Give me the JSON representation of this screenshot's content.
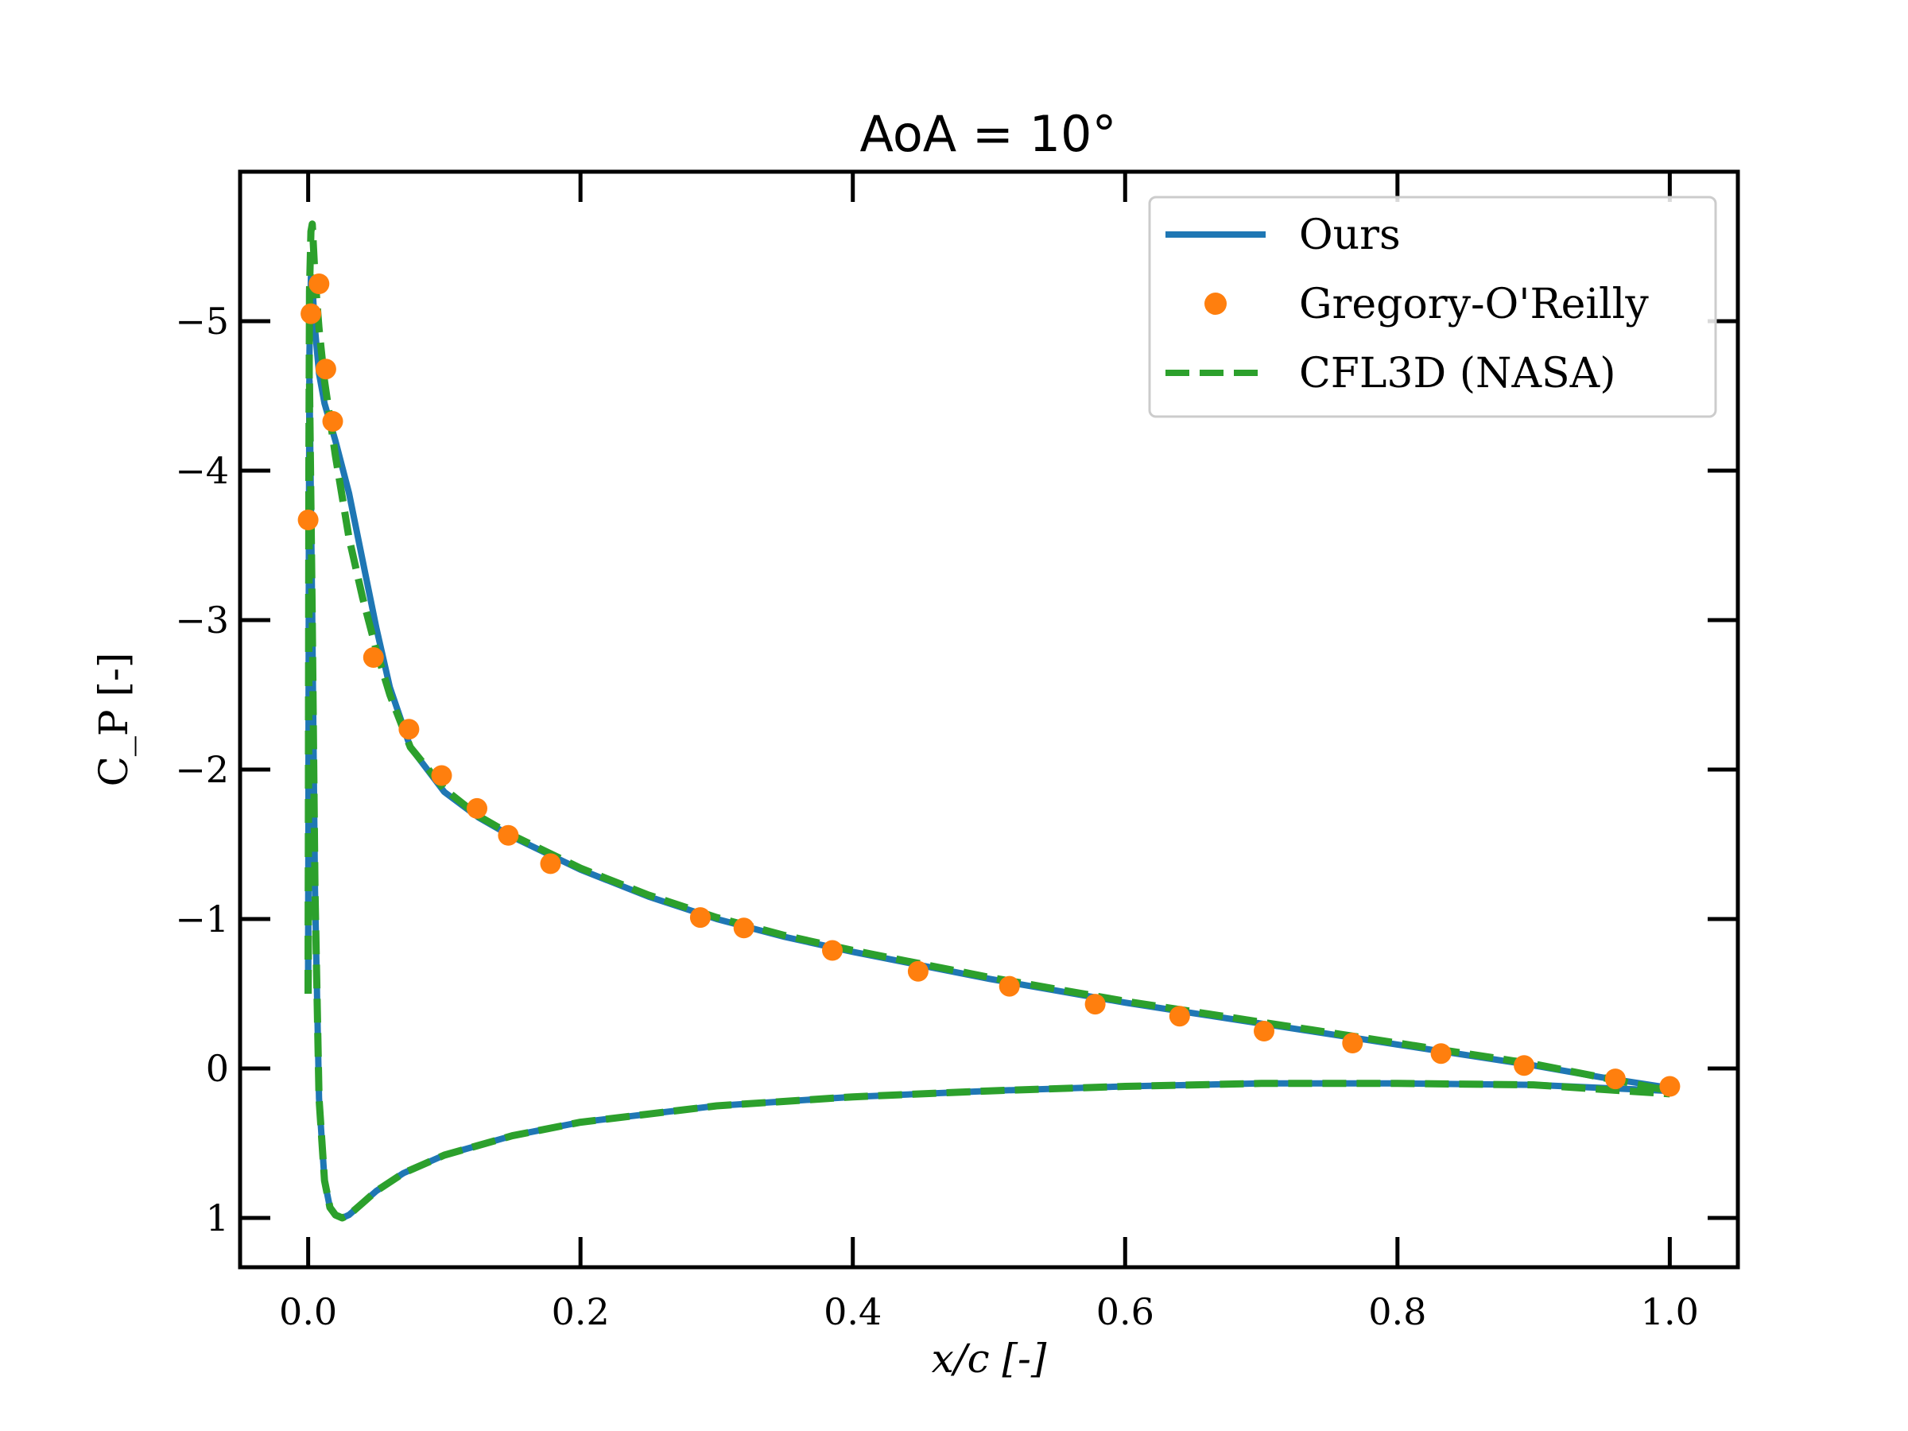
{
  "chart_data": {
    "type": "line",
    "title": "AoA = 10°",
    "xlabel": "x/c [-]",
    "ylabel": "C_P [-]",
    "xlim": [
      -0.05,
      1.05
    ],
    "ylim": [
      1.33,
      -6.0
    ],
    "y_inverted": true,
    "grid": false,
    "legend_position": "top-right",
    "x_ticks": [
      {
        "value": 0.0,
        "label": "0.0"
      },
      {
        "value": 0.2,
        "label": "0.2"
      },
      {
        "value": 0.4,
        "label": "0.4"
      },
      {
        "value": 0.6,
        "label": "0.6"
      },
      {
        "value": 0.8,
        "label": "0.8"
      },
      {
        "value": 1.0,
        "label": "1.0"
      }
    ],
    "y_ticks": [
      {
        "value": -5,
        "label": "−5"
      },
      {
        "value": -4,
        "label": "−4"
      },
      {
        "value": -3,
        "label": "−3"
      },
      {
        "value": -2,
        "label": "−2"
      },
      {
        "value": -1,
        "label": "−1"
      },
      {
        "value": 0,
        "label": "0"
      },
      {
        "value": 1,
        "label": "1"
      }
    ],
    "series": [
      {
        "name": "Ours",
        "style": "solid",
        "color": "#1f77b4",
        "upper": {
          "x": [
            0.0,
            0.0005,
            0.001,
            0.002,
            0.003,
            0.005,
            0.008,
            0.012,
            0.02,
            0.03,
            0.04,
            0.05,
            0.06,
            0.075,
            0.1,
            0.125,
            0.15,
            0.2,
            0.25,
            0.3,
            0.35,
            0.4,
            0.45,
            0.5,
            0.55,
            0.6,
            0.65,
            0.7,
            0.75,
            0.8,
            0.85,
            0.9,
            0.95,
            1.0
          ],
          "y": [
            -0.5,
            -3.5,
            -4.8,
            -5.3,
            -5.25,
            -4.95,
            -4.65,
            -4.45,
            -4.2,
            -3.85,
            -3.4,
            -2.95,
            -2.55,
            -2.15,
            -1.85,
            -1.68,
            -1.55,
            -1.33,
            -1.15,
            -1.0,
            -0.88,
            -0.78,
            -0.69,
            -0.6,
            -0.52,
            -0.44,
            -0.37,
            -0.3,
            -0.23,
            -0.16,
            -0.09,
            -0.02,
            0.06,
            0.13
          ]
        },
        "lower": {
          "x": [
            0.0,
            0.001,
            0.003,
            0.005,
            0.008,
            0.012,
            0.016,
            0.02,
            0.025,
            0.03,
            0.04,
            0.05,
            0.07,
            0.1,
            0.15,
            0.2,
            0.3,
            0.4,
            0.5,
            0.6,
            0.7,
            0.8,
            0.9,
            1.0
          ],
          "y": [
            -0.5,
            -4.6,
            -3.0,
            -1.2,
            0.2,
            0.75,
            0.93,
            0.98,
            1.0,
            0.98,
            0.9,
            0.82,
            0.7,
            0.58,
            0.45,
            0.36,
            0.25,
            0.19,
            0.15,
            0.12,
            0.1,
            0.1,
            0.11,
            0.15
          ]
        }
      },
      {
        "name": "CFL3D (NASA)",
        "style": "dashed",
        "color": "#2ca02c",
        "upper": {
          "x": [
            0.0,
            0.0005,
            0.001,
            0.002,
            0.003,
            0.005,
            0.008,
            0.012,
            0.02,
            0.03,
            0.04,
            0.05,
            0.06,
            0.075,
            0.1,
            0.125,
            0.15,
            0.2,
            0.25,
            0.3,
            0.35,
            0.4,
            0.45,
            0.5,
            0.55,
            0.6,
            0.65,
            0.7,
            0.75,
            0.8,
            0.85,
            0.9,
            0.95,
            1.0
          ],
          "y": [
            -0.5,
            -4.0,
            -5.2,
            -5.6,
            -5.65,
            -5.3,
            -4.95,
            -4.6,
            -4.1,
            -3.55,
            -3.15,
            -2.8,
            -2.5,
            -2.15,
            -1.87,
            -1.69,
            -1.56,
            -1.34,
            -1.16,
            -1.01,
            -0.89,
            -0.79,
            -0.7,
            -0.61,
            -0.53,
            -0.45,
            -0.38,
            -0.31,
            -0.24,
            -0.17,
            -0.1,
            -0.03,
            0.06,
            0.15
          ]
        },
        "lower": {
          "x": [
            0.0,
            0.001,
            0.003,
            0.005,
            0.008,
            0.012,
            0.016,
            0.02,
            0.025,
            0.03,
            0.04,
            0.05,
            0.07,
            0.1,
            0.15,
            0.2,
            0.3,
            0.4,
            0.5,
            0.6,
            0.7,
            0.8,
            0.9,
            1.0
          ],
          "y": [
            -0.5,
            -4.6,
            -3.0,
            -1.2,
            0.2,
            0.75,
            0.93,
            0.98,
            1.0,
            0.98,
            0.9,
            0.82,
            0.7,
            0.58,
            0.45,
            0.36,
            0.25,
            0.19,
            0.15,
            0.12,
            0.1,
            0.1,
            0.11,
            0.17
          ]
        }
      },
      {
        "name": "Gregory-O'Reilly",
        "style": "markers",
        "color": "#ff7f0e",
        "x": [
          0.0,
          0.002,
          0.008,
          0.013,
          0.018,
          0.048,
          0.074,
          0.098,
          0.124,
          0.147,
          0.178,
          0.288,
          0.32,
          0.385,
          0.448,
          0.515,
          0.578,
          0.64,
          0.702,
          0.767,
          0.832,
          0.893,
          0.96,
          1.0
        ],
        "y": [
          -3.67,
          -5.05,
          -5.25,
          -4.68,
          -4.33,
          -2.75,
          -2.27,
          -1.96,
          -1.74,
          -1.56,
          -1.37,
          -1.01,
          -0.94,
          -0.79,
          -0.65,
          -0.55,
          -0.43,
          -0.35,
          -0.25,
          -0.17,
          -0.1,
          -0.02,
          0.07,
          0.12
        ]
      }
    ]
  }
}
